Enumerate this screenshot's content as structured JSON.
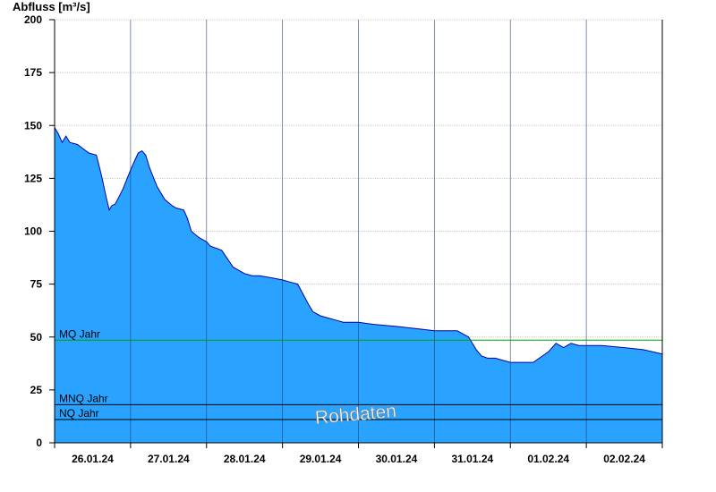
{
  "chart_data": {
    "type": "area",
    "ylabel": "Abfluss [m³/s]",
    "ylim": [
      0,
      200
    ],
    "yticks": [
      0,
      25,
      50,
      75,
      100,
      125,
      150,
      175,
      200
    ],
    "x_tick_labels": [
      "26.01.24",
      "27.01.24",
      "28.01.24",
      "29.01.24",
      "30.01.24",
      "31.01.24",
      "01.02.24",
      "02.02.24"
    ],
    "grid": true,
    "series": [
      {
        "values_note": "",
        "x": [
          0.0,
          0.05,
          0.1,
          0.15,
          0.2,
          0.3,
          0.45,
          0.55,
          0.62,
          0.68,
          0.72,
          0.75,
          0.8,
          0.9,
          1.0,
          1.05,
          1.1,
          1.15,
          1.2,
          1.25,
          1.35,
          1.45,
          1.55,
          1.6,
          1.7,
          1.75,
          1.8,
          1.9,
          2.0,
          2.05,
          2.2,
          2.35,
          2.5,
          2.6,
          2.7,
          2.85,
          3.0,
          3.1,
          3.2,
          3.35,
          3.4,
          3.5,
          3.6,
          3.7,
          3.8,
          4.0,
          4.2,
          4.5,
          4.75,
          5.0,
          5.3,
          5.45,
          5.55,
          5.62,
          5.7,
          5.8,
          6.0,
          6.1,
          6.3,
          6.5,
          6.6,
          6.7,
          6.8,
          6.9,
          7.0,
          7.2,
          7.5,
          7.75,
          8.0
        ],
        "y": [
          149,
          146,
          142,
          145,
          142,
          141,
          137,
          136,
          126,
          116,
          110,
          112,
          113,
          120,
          129,
          133,
          137,
          138,
          136,
          130,
          121,
          115,
          112,
          111,
          110,
          106,
          100,
          97,
          95,
          93,
          91,
          83,
          80,
          79,
          79,
          78,
          77,
          76,
          75,
          65,
          62,
          60,
          59,
          58,
          57,
          57,
          56,
          55,
          54,
          53,
          53,
          50,
          44,
          41,
          40,
          40,
          38,
          38,
          38,
          43,
          47,
          45,
          47,
          46,
          46,
          46,
          45,
          44,
          42
        ]
      }
    ],
    "reference_lines": [
      {
        "label": "MQ Jahr",
        "value": 48.5,
        "color": "#00a000"
      },
      {
        "label": "MNQ Jahr",
        "value": 18,
        "color": "#000000"
      },
      {
        "label": "NQ Jahr",
        "value": 11,
        "color": "#000000"
      }
    ],
    "watermark": "Rohdaten",
    "colors": {
      "fill": "#29a3ff",
      "line": "#0000aa",
      "grid": "#cccccc",
      "mq": "#00a000"
    }
  }
}
